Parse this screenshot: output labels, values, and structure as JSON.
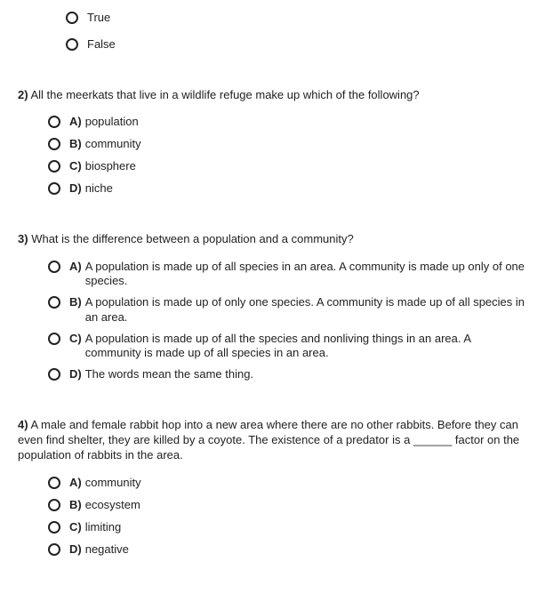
{
  "tf_partial": {
    "options": [
      "True",
      "False"
    ]
  },
  "questions": [
    {
      "number": "2)",
      "text": "All the meerkats that live in a wildlife refuge make up which of the following?",
      "options": [
        {
          "letter": "A)",
          "text": "population"
        },
        {
          "letter": "B)",
          "text": "community"
        },
        {
          "letter": "C)",
          "text": "biosphere"
        },
        {
          "letter": "D)",
          "text": "niche"
        }
      ]
    },
    {
      "number": "3)",
      "text": "What is the difference between a population and a community?",
      "options": [
        {
          "letter": "A)",
          "text": "A population is made up of all species in an area. A community is made up only of one species."
        },
        {
          "letter": "B)",
          "text": "A population is made up of only one species. A community is made up of all species in an area."
        },
        {
          "letter": "C)",
          "text": "A population is made up of all the species and nonliving things in an area. A community is made up of all species in an area."
        },
        {
          "letter": "D)",
          "text": "The words mean the same thing."
        }
      ]
    },
    {
      "number": "4)",
      "text": "A male and female rabbit hop into a new area where there are no other rabbits. Before they can even find shelter, they are killed by a coyote. The existence of a predator is a ______ factor on the population of rabbits in the area.",
      "options": [
        {
          "letter": "A)",
          "text": "community"
        },
        {
          "letter": "B)",
          "text": "ecosystem"
        },
        {
          "letter": "C)",
          "text": "limiting"
        },
        {
          "letter": "D)",
          "text": "negative"
        }
      ]
    }
  ]
}
